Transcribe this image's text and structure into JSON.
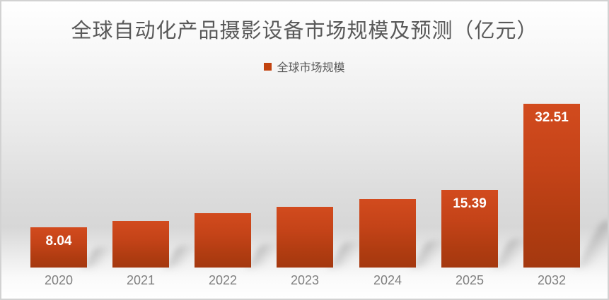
{
  "chart_data": {
    "type": "bar",
    "title": "全球自动化产品摄影设备市场规模及预测（亿元）",
    "legend": [
      "全球市场规模"
    ],
    "legend_position": "top-center",
    "categories": [
      "2020",
      "2021",
      "2022",
      "2023",
      "2024",
      "2025",
      "2032"
    ],
    "series": [
      {
        "name": "全球市场规模",
        "values": [
          8.04,
          9.25,
          10.79,
          12.09,
          13.55,
          15.39,
          32.51
        ]
      }
    ],
    "data_labels": [
      "8.04",
      "",
      "",
      "",
      "",
      "15.39",
      "32.51"
    ],
    "xlabel": "",
    "ylabel": "",
    "ylim": [
      0,
      34
    ],
    "grid": false,
    "colors": {
      "bar_top": "#d24b1e",
      "bar_bottom": "#a4380f",
      "data_label": "#ffffff",
      "axis_label": "#7f7f7f",
      "title": "#595959",
      "legend_marker": "#c2430f",
      "frame_border": "#d2d2d2"
    }
  }
}
